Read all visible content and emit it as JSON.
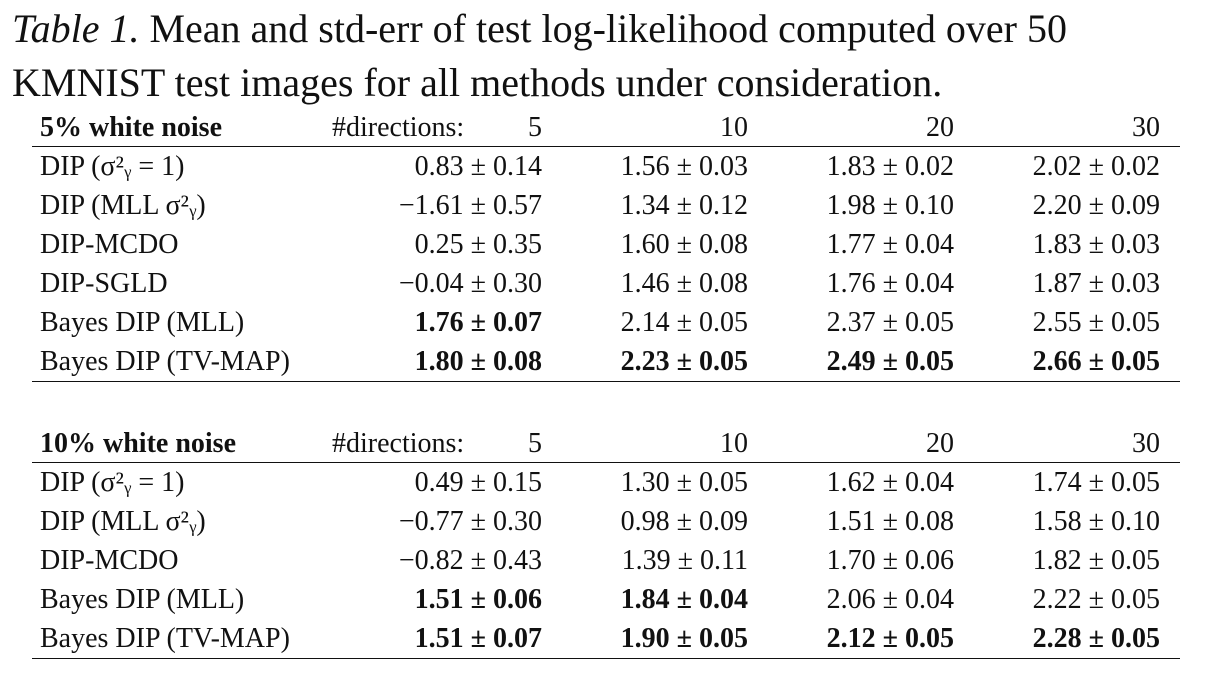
{
  "caption": {
    "label": "Table 1.",
    "text": " Mean and std-err of test log-likelihood computed over 50 KMNIST test images for all methods under consideration."
  },
  "directions_label": "#directions:",
  "directions": [
    "5",
    "10",
    "20",
    "30"
  ],
  "tables": [
    {
      "title": "5% white noise",
      "rows": [
        {
          "method": "DIP (σ²ᵧ = 1)",
          "values": [
            "0.83 ± 0.14",
            "1.56 ± 0.03",
            "1.83 ± 0.02",
            "2.02 ± 0.02"
          ],
          "bold": [
            false,
            false,
            false,
            false
          ]
        },
        {
          "method": "DIP (MLL σ²ᵧ)",
          "values": [
            "−1.61 ± 0.57",
            "1.34 ± 0.12",
            "1.98 ± 0.10",
            "2.20 ± 0.09"
          ],
          "bold": [
            false,
            false,
            false,
            false
          ]
        },
        {
          "method": "DIP-MCDO",
          "values": [
            "0.25 ± 0.35",
            "1.60 ± 0.08",
            "1.77 ± 0.04",
            "1.83 ± 0.03"
          ],
          "bold": [
            false,
            false,
            false,
            false
          ]
        },
        {
          "method": "DIP-SGLD",
          "values": [
            "−0.04 ± 0.30",
            "1.46 ± 0.08",
            "1.76 ± 0.04",
            "1.87 ± 0.03"
          ],
          "bold": [
            false,
            false,
            false,
            false
          ]
        },
        {
          "method": "Bayes DIP (MLL)",
          "values": [
            "1.76 ± 0.07",
            "2.14 ± 0.05",
            "2.37 ± 0.05",
            "2.55 ± 0.05"
          ],
          "bold": [
            true,
            false,
            false,
            false
          ]
        },
        {
          "method": "Bayes DIP (TV-MAP)",
          "values": [
            "1.80 ± 0.08",
            "2.23 ± 0.05",
            "2.49 ± 0.05",
            "2.66 ± 0.05"
          ],
          "bold": [
            true,
            true,
            true,
            true
          ]
        }
      ]
    },
    {
      "title": "10% white noise",
      "rows": [
        {
          "method": "DIP (σ²ᵧ = 1)",
          "values": [
            "0.49 ± 0.15",
            "1.30 ± 0.05",
            "1.62 ± 0.04",
            "1.74 ± 0.05"
          ],
          "bold": [
            false,
            false,
            false,
            false
          ]
        },
        {
          "method": "DIP (MLL σ²ᵧ)",
          "values": [
            "−0.77 ± 0.30",
            "0.98 ± 0.09",
            "1.51 ± 0.08",
            "1.58 ± 0.10"
          ],
          "bold": [
            false,
            false,
            false,
            false
          ]
        },
        {
          "method": "DIP-MCDO",
          "values": [
            "−0.82 ± 0.43",
            "1.39 ± 0.11",
            "1.70 ± 0.06",
            "1.82 ± 0.05"
          ],
          "bold": [
            false,
            false,
            false,
            false
          ]
        },
        {
          "method": "Bayes DIP (MLL)",
          "values": [
            "1.51 ± 0.06",
            "1.84 ± 0.04",
            "2.06 ± 0.04",
            "2.22 ± 0.05"
          ],
          "bold": [
            true,
            true,
            false,
            false
          ]
        },
        {
          "method": "Bayes DIP (TV-MAP)",
          "values": [
            "1.51 ± 0.07",
            "1.90 ± 0.05",
            "2.12 ± 0.05",
            "2.28 ± 0.05"
          ],
          "bold": [
            true,
            true,
            true,
            true
          ]
        }
      ]
    }
  ]
}
